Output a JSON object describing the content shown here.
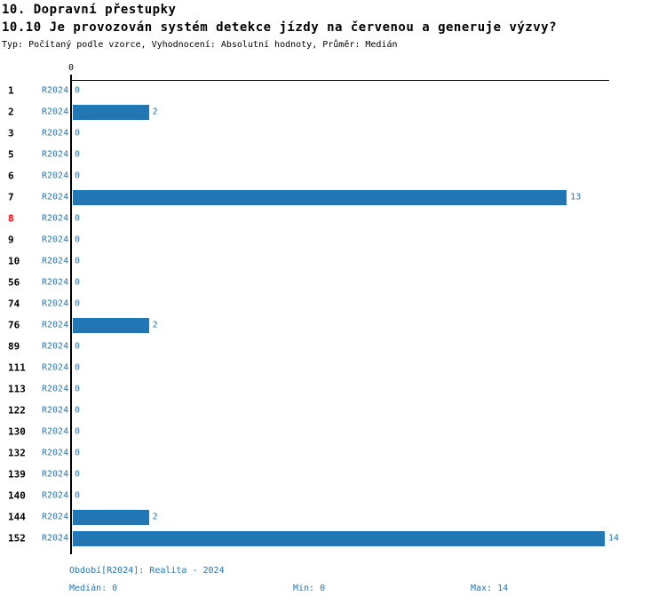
{
  "header": {
    "title": "10. Dopravní přestupky",
    "subtitle": "10.10 Je provozován systém detekce jízdy na červenou a generuje výzvy?",
    "meta": "Typ: Počítaný podle vzorce, Vyhodnocení: Absolutní hodnoty, Průměr: Medián"
  },
  "chart_data": {
    "type": "bar",
    "orientation": "horizontal",
    "title": "10.10 Je provozován systém detekce jízdy na červenou a generuje výzvy?",
    "categories": [
      "1",
      "2",
      "3",
      "5",
      "6",
      "7",
      "8",
      "9",
      "10",
      "56",
      "74",
      "76",
      "89",
      "111",
      "113",
      "122",
      "130",
      "132",
      "139",
      "140",
      "144",
      "152"
    ],
    "series_label": "R2024",
    "values": [
      0,
      2,
      0,
      0,
      0,
      13,
      0,
      0,
      0,
      0,
      0,
      2,
      0,
      0,
      0,
      0,
      0,
      0,
      0,
      0,
      2,
      14
    ],
    "highlighted_category": "8",
    "xlim": [
      0,
      14
    ],
    "axis_top_tick": "0",
    "grid": false,
    "bar_color": "#2176b4",
    "highlight_color": "#ff0000",
    "axis_color": "#000000"
  },
  "footer": {
    "period": "Období[R2024]: Realita - 2024",
    "median": "Medián: 0",
    "min": "Min: 0",
    "max": "Max: 14"
  }
}
